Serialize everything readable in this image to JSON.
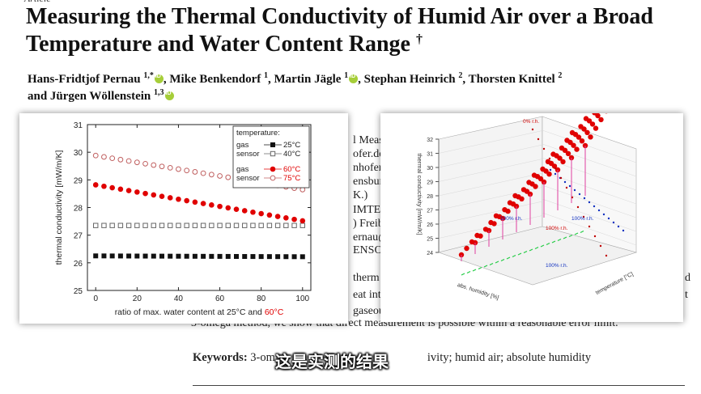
{
  "paper": {
    "title_line1": "Measuring the Thermal Conductivity of Humid Air over a Broad",
    "title_line2": "Temperature and Water Content Range",
    "title_dagger": "†",
    "authors": [
      {
        "name": "Hans-Fridtjof Pernau",
        "sup": "1,*",
        "orcid": true,
        "sep": ", "
      },
      {
        "name": "Mike Benkendorf",
        "sup": "1",
        "orcid": false,
        "sep": ", "
      },
      {
        "name": "Martin Jägle",
        "sup": "1",
        "orcid": true,
        "sep": ", "
      },
      {
        "name": "Stephan Heinrich",
        "sup": "2",
        "orcid": false,
        "sep": ", "
      },
      {
        "name": "Thorsten Knittel",
        "sup": "2",
        "orcid": false,
        "sep": ""
      },
      {
        "name": "and Jürgen Wöllenstein",
        "sup": "1,3",
        "orcid": true,
        "sep": ""
      }
    ],
    "affil_fragments": [
      "l Meas",
      "ofer.de (",
      "nhofer.",
      "ensbur",
      "K.)",
      "IMTE",
      ") Freib",
      "ernau@",
      "ENSOR"
    ],
    "abstract_fragments": [
      "therm",
      "eat int",
      "gaseou"
    ],
    "right_fragments": [
      "d",
      "t"
    ],
    "abstract_last_line": "3-omega method, we show that direct measurement is possible within a reasonable error limit.",
    "keywords_label": "Keywords:",
    "keywords_start": " 3-om",
    "keywords_end": "ivity; humid air; absolute humidity"
  },
  "subtitle": "这是实测的结果",
  "colors": {
    "black_series": "#111111",
    "gray_series": "#666666",
    "red_series": "#e00000",
    "pink_series": "#c06060",
    "highlight": "#e00000"
  },
  "chart_data": [
    {
      "type": "scatter",
      "xlabel": "ratio of max. water content at 25°C and ",
      "xlabel_highlight": "60°C",
      "ylabel": "thermal conductivity [mW/m/K]",
      "xlim": [
        -4,
        104
      ],
      "ylim": [
        25,
        31
      ],
      "xticks": [
        0,
        20,
        40,
        60,
        80,
        100
      ],
      "yticks": [
        25,
        26,
        27,
        28,
        29,
        30,
        31
      ],
      "legend": {
        "title": "temperature:",
        "rows": [
          {
            "label": "gas",
            "temp": "25°C",
            "marker": "square-filled",
            "color": "#111111"
          },
          {
            "label": "sensor",
            "temp": "40°C",
            "marker": "square-open",
            "color": "#666666"
          },
          {
            "label": "gas",
            "temp": "60°C",
            "marker": "circle-filled",
            "color": "#e00000"
          },
          {
            "label": "sensor",
            "temp": "75°C",
            "marker": "circle-open",
            "color": "#c06060"
          }
        ]
      },
      "series": [
        {
          "name": "25°C",
          "marker": "square-filled",
          "y0": 26.25,
          "y1": 26.22
        },
        {
          "name": "40°C",
          "marker": "square-open",
          "y0": 27.35,
          "y1": 27.35
        },
        {
          "name": "60°C",
          "marker": "circle-filled",
          "y0": 28.82,
          "y1": 27.52
        },
        {
          "name": "75°C",
          "marker": "circle-open",
          "y0": 29.88,
          "y1": 28.65
        }
      ],
      "x_step": 4
    },
    {
      "type": "scatter",
      "subtype": "3d",
      "zlabel": "thermal conductivity [mW/m/K]",
      "zticks": [
        24,
        25,
        26,
        27,
        28,
        29,
        30,
        31,
        32
      ],
      "xaxis_label": "abs. humidity [%]",
      "yaxis_label": "temperature [°C]",
      "annotations": [
        "0% r.h.",
        "100% r.h.",
        "100% r.h.",
        "100% r.h.",
        "100% r.h."
      ]
    }
  ]
}
